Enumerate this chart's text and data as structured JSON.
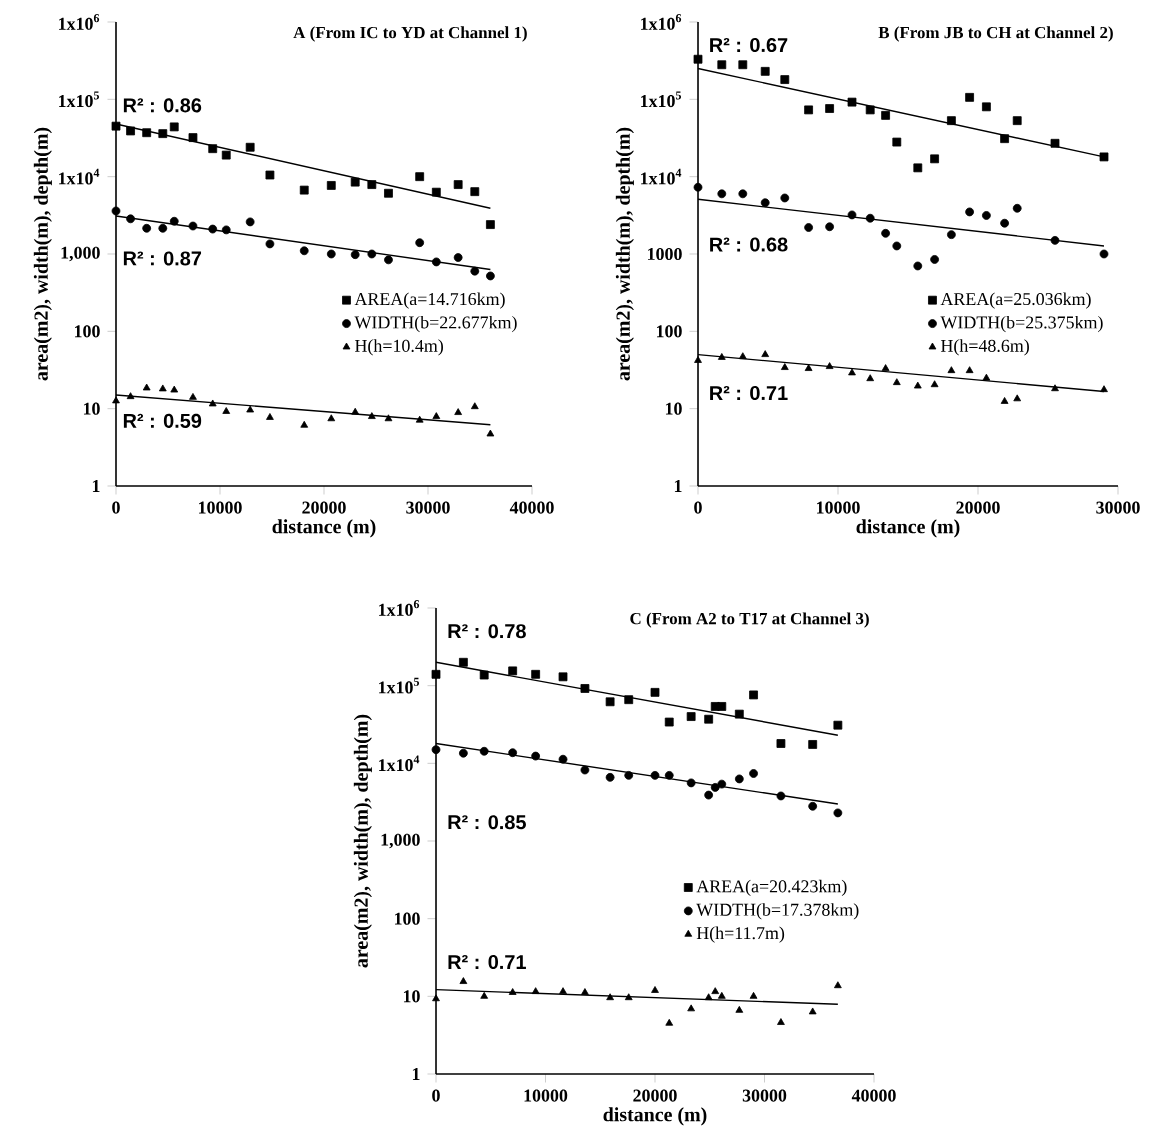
{
  "chart_data": [
    {
      "type": "scatter",
      "title": "A (From IC to YD at Channel 1)",
      "xlabel": "distance (m)",
      "ylabel": "area(m2), width(m), depth(m)",
      "log": "y",
      "legend": "right",
      "xlim": [
        0,
        40000
      ],
      "xticks": [
        0,
        10000,
        20000,
        30000,
        40000
      ],
      "ylim": [
        1,
        1000000
      ],
      "yticks": [
        1,
        10,
        100,
        {
          "value": 1000,
          "label": "1,000"
        },
        {
          "value": 10000,
          "label": "1x10$^{4}$"
        },
        {
          "value": 100000,
          "label": "1x10$^{5}$"
        },
        {
          "value": 1000000,
          "label": "1x10$^{6}$"
        }
      ],
      "x": [
        0,
        1400,
        2950,
        4500,
        5600,
        7400,
        9300,
        10600,
        12900,
        14800,
        18100,
        20700,
        23000,
        24600,
        26200,
        29200,
        30800,
        32900,
        34500,
        36000
      ],
      "series": [
        {
          "name": "AREA(a=14.716km)",
          "color": "#000000",
          "marker": "square",
          "values": [
            45000,
            39000,
            37000,
            36000,
            44000,
            32000,
            23000,
            19000,
            24000,
            10500,
            6700,
            7700,
            8500,
            7900,
            6100,
            10000,
            6300,
            7900,
            6400,
            2400
          ]
        },
        {
          "name": "WIDTH(b=22.677km)",
          "color": "#000000",
          "marker": "circle",
          "values": [
            3600,
            2850,
            2150,
            2150,
            2650,
            2300,
            2100,
            2050,
            2600,
            1350,
            1100,
            1000,
            980,
            1000,
            840,
            1400,
            790,
            900,
            600,
            520
          ]
        },
        {
          "name": "H(h=10.4m)",
          "color": "#000000",
          "marker": "triangle",
          "values": [
            12.6,
            14.3,
            18.5,
            18,
            17.4,
            14,
            11.5,
            9.2,
            9.6,
            7.7,
            6.1,
            7.4,
            9,
            7.9,
            7.4,
            7.1,
            7.9,
            8.9,
            10.6,
            4.7
          ]
        },
        {
          "type": "line",
          "color": "#000000",
          "line_style": "solid",
          "x": [
            0,
            36000
          ],
          "values": [
            48000,
            3900
          ]
        },
        {
          "type": "line",
          "color": "#000000",
          "line_style": "solid",
          "x": [
            0,
            36000
          ],
          "values": [
            3100,
            630
          ]
        },
        {
          "type": "line",
          "color": "#000000",
          "line_style": "solid",
          "x": [
            0,
            36000
          ],
          "values": [
            15,
            6.2
          ]
        }
      ],
      "annotations": [
        "R² : 0.86",
        "R² : 0.87",
        "R² : 0.59"
      ]
    },
    {
      "type": "scatter",
      "title": "B (From JB to CH at Channel 2)",
      "xlabel": "distance (m)",
      "ylabel": "area(m2), width(m), depth(m)",
      "log": "y",
      "legend": "right",
      "xlim": [
        0,
        30000
      ],
      "xticks": [
        0,
        10000,
        20000,
        30000
      ],
      "ylim": [
        1,
        1000000
      ],
      "yticks": [
        1,
        10,
        100,
        1000,
        {
          "value": 10000,
          "label": "1x10$^{4}$"
        },
        {
          "value": 100000,
          "label": "1x10$^{5}$"
        },
        {
          "value": 1000000,
          "label": "1x10$^{6}$"
        }
      ],
      "x": [
        0,
        1700,
        3200,
        4800,
        6200,
        7900,
        9400,
        11000,
        12300,
        13400,
        14200,
        15700,
        16900,
        18100,
        19400,
        20600,
        21900,
        22800,
        25500,
        29000
      ],
      "series": [
        {
          "name": "AREA(a=25.036km)",
          "color": "#000000",
          "marker": "square",
          "values": [
            330000,
            280000,
            280000,
            230000,
            180000,
            73000,
            76000,
            92000,
            73000,
            62000,
            28000,
            13000,
            17000,
            53000,
            106000,
            80000,
            31000,
            53000,
            27000,
            18000
          ]
        },
        {
          "name": "WIDTH(b=25.375km)",
          "color": "#000000",
          "marker": "circle",
          "values": [
            7300,
            6000,
            6000,
            4600,
            5300,
            2200,
            2250,
            3200,
            2900,
            1850,
            1270,
            700,
            850,
            1780,
            3500,
            3150,
            2500,
            3900,
            1500,
            1000
          ]
        },
        {
          "name": "H(h=48.6m)",
          "color": "#000000",
          "marker": "triangle",
          "values": [
            42,
            46,
            47,
            50,
            34,
            33,
            35,
            29,
            24.4,
            33,
            21.7,
            19.6,
            20.4,
            31,
            31,
            24.8,
            12.4,
            13.4,
            18.1,
            17.6
          ]
        },
        {
          "type": "line",
          "color": "#000000",
          "line_style": "solid",
          "x": [
            0,
            29000
          ],
          "values": [
            250000,
            18000
          ]
        },
        {
          "type": "line",
          "color": "#000000",
          "line_style": "solid",
          "x": [
            0,
            29000
          ],
          "values": [
            5100,
            1270
          ]
        },
        {
          "type": "line",
          "color": "#000000",
          "line_style": "solid",
          "x": [
            0,
            29000
          ],
          "values": [
            50,
            16.7
          ]
        }
      ],
      "annotations": [
        "R² : 0.67",
        "R² : 0.68",
        "R² : 0.71"
      ]
    },
    {
      "type": "scatter",
      "title": "C (From A2 to T17 at Channel 3)",
      "xlabel": "distance (m)",
      "ylabel": "area(m2), width(m), depth(m)",
      "log": "y",
      "legend": "right",
      "xlim": [
        0,
        40000
      ],
      "xticks": [
        0,
        10000,
        20000,
        30000,
        40000
      ],
      "ylim": [
        1,
        1000000
      ],
      "yticks": [
        1,
        10,
        100,
        {
          "value": 1000,
          "label": "1,000"
        },
        {
          "value": 10000,
          "label": "1x10$^{4}$"
        },
        {
          "value": 100000,
          "label": "1x10$^{5}$"
        },
        {
          "value": 1000000,
          "label": "1x10$^{6}$"
        }
      ],
      "x": [
        0,
        2500,
        4400,
        7000,
        9100,
        11600,
        13600,
        15900,
        17600,
        20000,
        21300,
        23300,
        24900,
        25500,
        26100,
        27700,
        29000,
        31500,
        34400,
        36700
      ],
      "series": [
        {
          "name": "AREA(a=20.423km)",
          "color": "#000000",
          "marker": "square",
          "values": [
            140000,
            200000,
            137000,
            155000,
            140000,
            130000,
            92000,
            62000,
            66000,
            82000,
            34000,
            40000,
            37000,
            54000,
            54000,
            43000,
            76000,
            18000,
            17500,
            31000
          ]
        },
        {
          "name": "WIDTH(b=17.378km)",
          "color": "#000000",
          "marker": "circle",
          "values": [
            15000,
            13500,
            14300,
            13700,
            12400,
            11300,
            8200,
            6600,
            7000,
            7000,
            7000,
            5600,
            3900,
            4900,
            5400,
            6300,
            7400,
            3800,
            2800,
            2300
          ]
        },
        {
          "name": "H(h=11.7m)",
          "color": "#000000",
          "marker": "triangle",
          "values": [
            9.3,
            15.5,
            10,
            11.2,
            11.5,
            11.5,
            11.2,
            9.6,
            9.6,
            11.9,
            4.5,
            6.9,
            9.6,
            11.5,
            10,
            6.6,
            10,
            4.6,
            6.3,
            13.7
          ]
        },
        {
          "type": "line",
          "color": "#000000",
          "line_style": "solid",
          "x": [
            0,
            36700
          ],
          "values": [
            200000,
            23000
          ]
        },
        {
          "type": "line",
          "color": "#000000",
          "line_style": "solid",
          "x": [
            0,
            36700
          ],
          "values": [
            18000,
            3000
          ]
        },
        {
          "type": "line",
          "color": "#000000",
          "line_style": "solid",
          "x": [
            0,
            36700
          ],
          "values": [
            12.2,
            7.9
          ]
        }
      ],
      "annotations": [
        "R² : 0.78",
        "R² : 0.85",
        "R² : 0.71"
      ]
    }
  ]
}
